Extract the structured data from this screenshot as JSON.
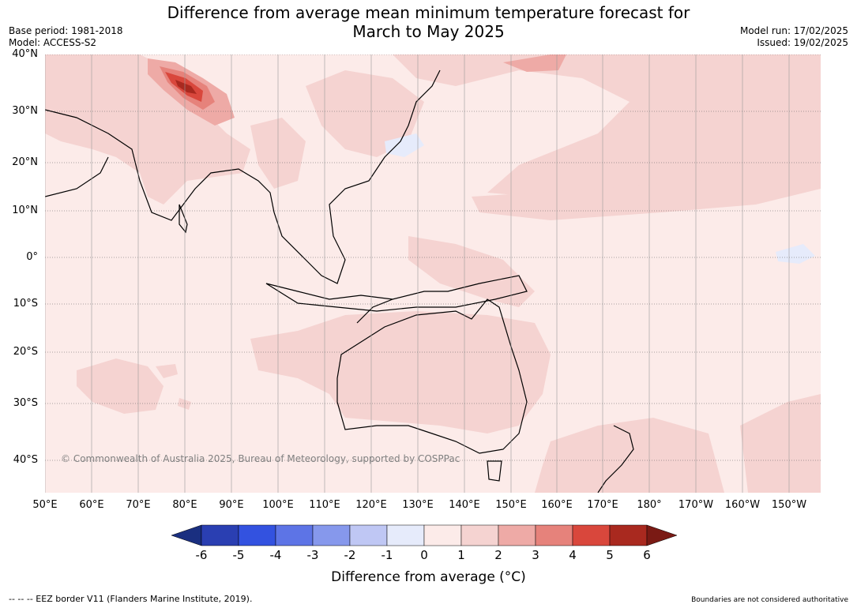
{
  "title_line1": "Difference from average mean minimum temperature forecast for",
  "title_line2": "March to May 2025",
  "meta_left": {
    "base_period": "Base period: 1981-2018",
    "model": "Model: ACCESS-S2"
  },
  "meta_right": {
    "model_run": "Model run: 17/02/2025",
    "issued": "Issued: 19/02/2025"
  },
  "lat_labels": [
    "40°N",
    "30°N",
    "20°N",
    "10°N",
    "0°",
    "10°S",
    "20°S",
    "30°S",
    "40°S"
  ],
  "lon_labels": [
    "50°E",
    "60°E",
    "70°E",
    "80°E",
    "90°E",
    "100°E",
    "110°E",
    "120°E",
    "130°E",
    "140°E",
    "150°E",
    "160°E",
    "170°E",
    "180°",
    "170°W",
    "160°W",
    "150°W"
  ],
  "copyright": "© Commonwealth of Australia 2025, Bureau of Meteorology, supported by COSPPac",
  "colorbar": {
    "ticks": [
      "-6",
      "-5",
      "-4",
      "-3",
      "-2",
      "-1",
      "0",
      "1",
      "2",
      "3",
      "4",
      "5",
      "6"
    ],
    "colors": [
      "#1a2f80",
      "#2a3fb2",
      "#3352e0",
      "#5d74e6",
      "#8698ec",
      "#bfc7f4",
      "#e6ebfb",
      "#fcebe9",
      "#f5d3d1",
      "#eeaaa6",
      "#e6827b",
      "#d9473c",
      "#a9291f",
      "#7a1a14"
    ],
    "label": "Difference from average (°C)"
  },
  "footer_left": "-- -- -- EEZ border V11 (Flanders Marine Institute, 2019).",
  "footer_right": "Boundaries are not considered authoritative"
}
